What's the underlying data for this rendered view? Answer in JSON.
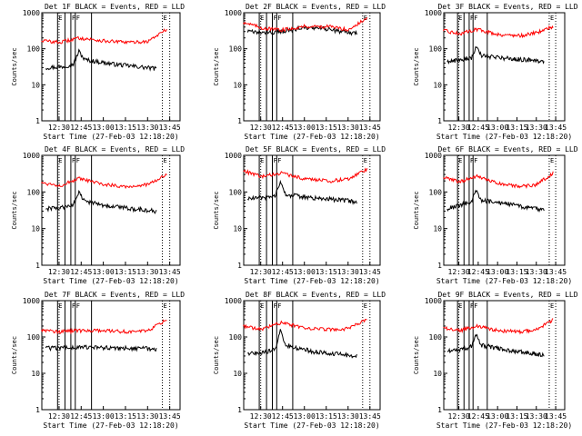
{
  "colors": {
    "events": "#000000",
    "lld": "#ff0000",
    "axes": "#000000",
    "background": "#ffffff"
  },
  "chart_data": [
    {
      "type": "line",
      "title": "Det 1F BLACK = Events, RED = LLD",
      "xlabel": "Start Time (27-Feb-03 12:18:20)",
      "ylabel": "Counts/sec",
      "yscale": "log",
      "ylim": [
        1,
        1000
      ],
      "y_ticks": [
        "1",
        "10",
        "100",
        "1000"
      ],
      "x_ticks": [
        "12:30",
        "12:45",
        "13:00",
        "13:15",
        "13:30",
        "13:45"
      ],
      "marker_labels": [
        "E",
        "F",
        "F",
        "E"
      ],
      "series": [
        {
          "name": "Events",
          "color": "#000000",
          "start": "12:21",
          "end": "13:36",
          "anchors": [
            [
              0,
              30
            ],
            [
              0.15,
              32
            ],
            [
              0.25,
              38
            ],
            [
              0.3,
              85
            ],
            [
              0.35,
              50
            ],
            [
              0.6,
              38
            ],
            [
              1,
              28
            ]
          ]
        },
        {
          "name": "LLD",
          "color": "#ff0000",
          "start": "12:18",
          "end": "13:43",
          "anchors": [
            [
              0,
              170
            ],
            [
              0.15,
              150
            ],
            [
              0.3,
              200
            ],
            [
              0.5,
              165
            ],
            [
              0.7,
              150
            ],
            [
              0.85,
              160
            ],
            [
              1,
              350
            ]
          ]
        }
      ]
    },
    {
      "type": "line",
      "title": "Det 2F BLACK = Events, RED = LLD",
      "xlabel": "Start Time (27-Feb-03 12:18:20)",
      "ylabel": "Counts/sec",
      "yscale": "log",
      "ylim": [
        1,
        1000
      ],
      "y_ticks": [
        "1",
        "10",
        "100",
        "1000"
      ],
      "x_ticks": [
        "12:30",
        "12:45",
        "13:00",
        "13:15",
        "13:30",
        "13:45"
      ],
      "marker_labels": [
        "E",
        "F",
        "F",
        "E"
      ],
      "series": [
        {
          "name": "Events",
          "color": "#000000",
          "start": "12:21",
          "end": "13:36",
          "anchors": [
            [
              0,
              300
            ],
            [
              0.15,
              280
            ],
            [
              0.3,
              300
            ],
            [
              0.5,
              380
            ],
            [
              0.7,
              360
            ],
            [
              0.85,
              300
            ],
            [
              1,
              270
            ]
          ]
        },
        {
          "name": "LLD",
          "color": "#ff0000",
          "start": "12:18",
          "end": "13:43",
          "anchors": [
            [
              0,
              550
            ],
            [
              0.15,
              380
            ],
            [
              0.3,
              330
            ],
            [
              0.5,
              420
            ],
            [
              0.7,
              410
            ],
            [
              0.85,
              340
            ],
            [
              1,
              700
            ]
          ]
        }
      ]
    },
    {
      "type": "line",
      "title": "Det 3F BLACK = Events, RED = LLD",
      "xlabel": "Start Time (27-Feb-03 12:18:20)",
      "ylabel": "Counts/sec",
      "yscale": "log",
      "ylim": [
        1,
        1000
      ],
      "y_ticks": [
        "1",
        "10",
        "100",
        "1000"
      ],
      "x_ticks": [
        "12:30",
        "12:45",
        "13:00",
        "13:15",
        "13:30",
        "13:45"
      ],
      "marker_labels": [
        "E",
        "F",
        "F",
        "E"
      ],
      "series": [
        {
          "name": "Events",
          "color": "#000000",
          "start": "12:21",
          "end": "13:36",
          "anchors": [
            [
              0,
              45
            ],
            [
              0.15,
              50
            ],
            [
              0.25,
              55
            ],
            [
              0.3,
              110
            ],
            [
              0.35,
              65
            ],
            [
              0.6,
              55
            ],
            [
              1,
              45
            ]
          ]
        },
        {
          "name": "LLD",
          "color": "#ff0000",
          "start": "12:18",
          "end": "13:43",
          "anchors": [
            [
              0,
              320
            ],
            [
              0.15,
              260
            ],
            [
              0.3,
              350
            ],
            [
              0.5,
              250
            ],
            [
              0.7,
              230
            ],
            [
              0.85,
              280
            ],
            [
              1,
              420
            ]
          ]
        }
      ]
    },
    {
      "type": "line",
      "title": "Det 4F BLACK = Events, RED = LLD",
      "xlabel": "Start Time (27-Feb-03 12:18:20)",
      "ylabel": "Counts/sec",
      "yscale": "log",
      "ylim": [
        1,
        1000
      ],
      "y_ticks": [
        "1",
        "10",
        "100",
        "1000"
      ],
      "x_ticks": [
        "12:30",
        "12:45",
        "13:00",
        "13:15",
        "13:30",
        "13:45"
      ],
      "marker_labels": [
        "E",
        "F",
        "F",
        "E"
      ],
      "series": [
        {
          "name": "Events",
          "color": "#000000",
          "start": "12:21",
          "end": "13:36",
          "anchors": [
            [
              0,
              35
            ],
            [
              0.15,
              38
            ],
            [
              0.25,
              45
            ],
            [
              0.3,
              100
            ],
            [
              0.35,
              55
            ],
            [
              0.6,
              40
            ],
            [
              1,
              30
            ]
          ]
        },
        {
          "name": "LLD",
          "color": "#ff0000",
          "start": "12:18",
          "end": "13:43",
          "anchors": [
            [
              0,
              180
            ],
            [
              0.15,
              150
            ],
            [
              0.3,
              230
            ],
            [
              0.5,
              160
            ],
            [
              0.7,
              140
            ],
            [
              0.85,
              160
            ],
            [
              1,
              300
            ]
          ]
        }
      ]
    },
    {
      "type": "line",
      "title": "Det 5F BLACK = Events, RED = LLD",
      "xlabel": "Start Time (27-Feb-03 12:18:20)",
      "ylabel": "Counts/sec",
      "yscale": "log",
      "ylim": [
        1,
        1000
      ],
      "y_ticks": [
        "1",
        "10",
        "100",
        "1000"
      ],
      "x_ticks": [
        "12:30",
        "12:45",
        "13:00",
        "13:15",
        "13:30",
        "13:45"
      ],
      "marker_labels": [
        "E",
        "F",
        "F",
        "E"
      ],
      "series": [
        {
          "name": "Events",
          "color": "#000000",
          "start": "12:21",
          "end": "13:36",
          "anchors": [
            [
              0,
              65
            ],
            [
              0.15,
              70
            ],
            [
              0.25,
              80
            ],
            [
              0.3,
              170
            ],
            [
              0.35,
              85
            ],
            [
              0.6,
              70
            ],
            [
              1,
              55
            ]
          ]
        },
        {
          "name": "LLD",
          "color": "#ff0000",
          "start": "12:18",
          "end": "13:43",
          "anchors": [
            [
              0,
              380
            ],
            [
              0.15,
              260
            ],
            [
              0.3,
              330
            ],
            [
              0.5,
              230
            ],
            [
              0.7,
              200
            ],
            [
              0.85,
              230
            ],
            [
              1,
              430
            ]
          ]
        }
      ]
    },
    {
      "type": "line",
      "title": "Det 6F BLACK = Events, RED = LLD",
      "xlabel": "Start Time (27-Feb-03 12:18:20)",
      "ylabel": "Counts/sec",
      "yscale": "log",
      "ylim": [
        1,
        1000
      ],
      "y_ticks": [
        "1",
        "10",
        "100",
        "1000"
      ],
      "x_ticks": [
        "12:30",
        "12:45",
        "13:00",
        "13:15",
        "13:30",
        "13:45"
      ],
      "marker_labels": [
        "E",
        "F",
        "F",
        "E"
      ],
      "series": [
        {
          "name": "Events",
          "color": "#000000",
          "start": "12:21",
          "end": "13:36",
          "anchors": [
            [
              0,
              35
            ],
            [
              0.15,
              45
            ],
            [
              0.25,
              55
            ],
            [
              0.3,
              110
            ],
            [
              0.35,
              60
            ],
            [
              0.6,
              48
            ],
            [
              1,
              32
            ]
          ]
        },
        {
          "name": "LLD",
          "color": "#ff0000",
          "start": "12:18",
          "end": "13:43",
          "anchors": [
            [
              0,
              250
            ],
            [
              0.15,
              190
            ],
            [
              0.3,
              270
            ],
            [
              0.5,
              170
            ],
            [
              0.7,
              140
            ],
            [
              0.85,
              160
            ],
            [
              1,
              330
            ]
          ]
        }
      ]
    },
    {
      "type": "line",
      "title": "Det 7F BLACK = Events, RED = LLD",
      "xlabel": "Start Time (27-Feb-03 12:18:20)",
      "ylabel": "Counts/sec",
      "yscale": "log",
      "ylim": [
        1,
        1000
      ],
      "y_ticks": [
        "1",
        "10",
        "100",
        "1000"
      ],
      "x_ticks": [
        "12:30",
        "12:45",
        "13:00",
        "13:15",
        "13:30",
        "13:45"
      ],
      "marker_labels": [
        "E",
        "F",
        "F",
        "E"
      ],
      "series": [
        {
          "name": "Events",
          "color": "#000000",
          "start": "12:21",
          "end": "13:36",
          "anchors": [
            [
              0,
              50
            ],
            [
              0.15,
              50
            ],
            [
              0.25,
              52
            ],
            [
              0.3,
              55
            ],
            [
              0.35,
              52
            ],
            [
              0.6,
              50
            ],
            [
              1,
              48
            ]
          ]
        },
        {
          "name": "LLD",
          "color": "#ff0000",
          "start": "12:18",
          "end": "13:43",
          "anchors": [
            [
              0,
              160
            ],
            [
              0.15,
              140
            ],
            [
              0.3,
              150
            ],
            [
              0.5,
              150
            ],
            [
              0.7,
              140
            ],
            [
              0.85,
              150
            ],
            [
              1,
              300
            ]
          ]
        }
      ]
    },
    {
      "type": "line",
      "title": "Det 8F BLACK = Events, RED = LLD",
      "xlabel": "Start Time (27-Feb-03 12:18:20)",
      "ylabel": "Counts/sec",
      "yscale": "log",
      "ylim": [
        1,
        1000
      ],
      "y_ticks": [
        "1",
        "10",
        "100",
        "1000"
      ],
      "x_ticks": [
        "12:30",
        "12:45",
        "13:00",
        "13:15",
        "13:30",
        "13:45"
      ],
      "marker_labels": [
        "E",
        "F",
        "F",
        "E"
      ],
      "series": [
        {
          "name": "Events",
          "color": "#000000",
          "start": "12:21",
          "end": "13:36",
          "anchors": [
            [
              0,
              35
            ],
            [
              0.15,
              38
            ],
            [
              0.25,
              45
            ],
            [
              0.3,
              150
            ],
            [
              0.35,
              60
            ],
            [
              0.6,
              40
            ],
            [
              1,
              30
            ]
          ]
        },
        {
          "name": "LLD",
          "color": "#ff0000",
          "start": "12:18",
          "end": "13:43",
          "anchors": [
            [
              0,
              200
            ],
            [
              0.15,
              160
            ],
            [
              0.3,
              250
            ],
            [
              0.5,
              180
            ],
            [
              0.7,
              160
            ],
            [
              0.85,
              170
            ],
            [
              1,
              300
            ]
          ]
        }
      ]
    },
    {
      "type": "line",
      "title": "Det 9F BLACK = Events, RED = LLD",
      "xlabel": "Start Time (27-Feb-03 12:18:20)",
      "ylabel": "Counts/sec",
      "yscale": "log",
      "ylim": [
        1,
        1000
      ],
      "y_ticks": [
        "1",
        "10",
        "100",
        "1000"
      ],
      "x_ticks": [
        "12:30",
        "12:45",
        "13:00",
        "13:15",
        "13:30",
        "13:45"
      ],
      "marker_labels": [
        "E",
        "F",
        "F",
        "E"
      ],
      "series": [
        {
          "name": "Events",
          "color": "#000000",
          "start": "12:21",
          "end": "13:36",
          "anchors": [
            [
              0,
              40
            ],
            [
              0.15,
              45
            ],
            [
              0.25,
              55
            ],
            [
              0.3,
              120
            ],
            [
              0.35,
              60
            ],
            [
              0.6,
              45
            ],
            [
              1,
              32
            ]
          ]
        },
        {
          "name": "LLD",
          "color": "#ff0000",
          "start": "12:18",
          "end": "13:43",
          "anchors": [
            [
              0,
              180
            ],
            [
              0.15,
              150
            ],
            [
              0.3,
              200
            ],
            [
              0.5,
              150
            ],
            [
              0.7,
              140
            ],
            [
              0.85,
              160
            ],
            [
              1,
              300
            ]
          ]
        }
      ]
    }
  ]
}
